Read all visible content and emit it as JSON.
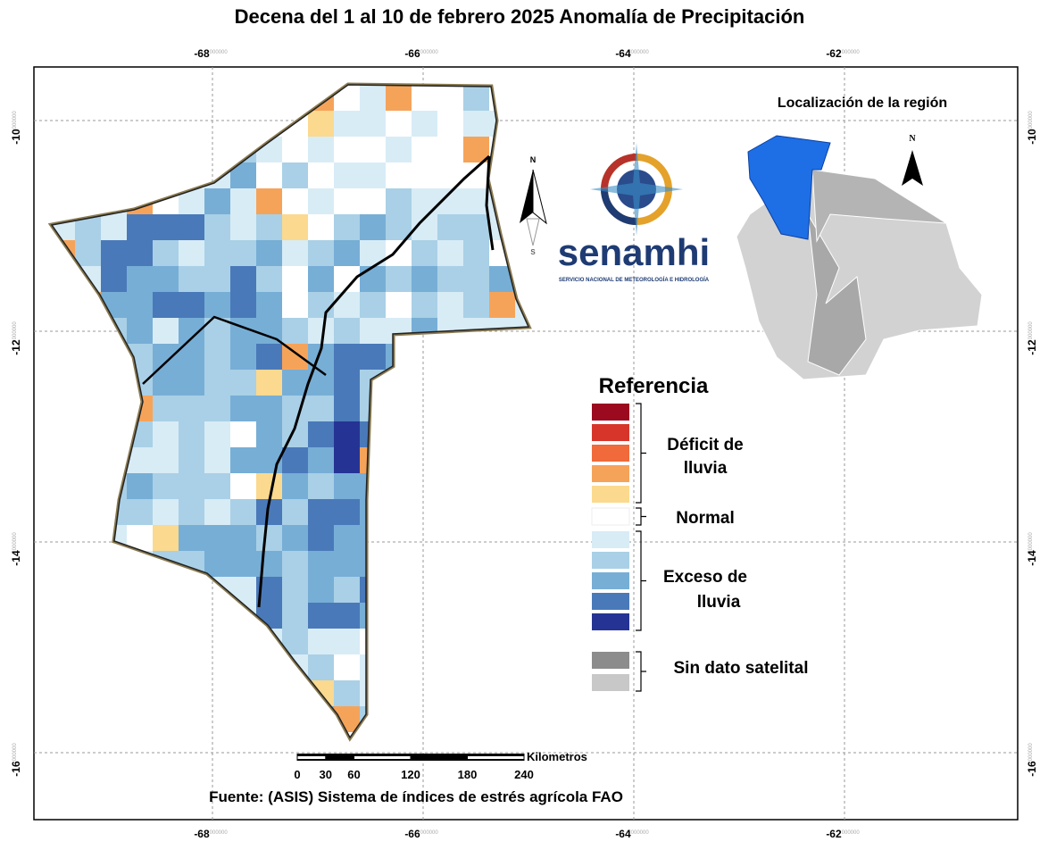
{
  "title": "Decena del 1 al 10 de febrero 2025 Anomalía de Precipitación",
  "map": {
    "lon_ticks": [
      -68,
      -66,
      -64,
      -62
    ],
    "lat_ticks": [
      -10,
      -12,
      -14,
      -16
    ],
    "tick_suffix": "000000"
  },
  "north_arrow": {
    "north": "N",
    "south": "S"
  },
  "logo": {
    "name": "senamhi",
    "subtitle": "SERVICIO NACIONAL DE METEOROLOGÍA E HIDROLOGÍA"
  },
  "inset": {
    "title": "Localización de la región",
    "north": "N"
  },
  "legend": {
    "title": "Referencia",
    "groups": [
      {
        "label": [
          "Déficit de",
          "lluvia"
        ],
        "colors": [
          "#9b0a1f",
          "#d7352a",
          "#f06a3b",
          "#f6a35a",
          "#fbd98e"
        ]
      },
      {
        "label": [
          "Normal"
        ],
        "colors": [
          "#ffffff"
        ]
      },
      {
        "label": [
          "Exceso de",
          "lluvia"
        ],
        "colors": [
          "#d8ecf6",
          "#a9d0e6",
          "#77aed6",
          "#4a79b9",
          "#253494"
        ]
      },
      {
        "label": [
          "Sin dato satelital"
        ],
        "colors": [
          "#8c8c8c",
          "#c8c8c8"
        ]
      }
    ]
  },
  "scale_bar": {
    "unit": "Kilometros",
    "ticks": [
      0,
      30,
      60,
      120,
      180,
      240
    ]
  },
  "source": "Fuente: (ASIS) Sistema de índices de estrés agrícola FAO"
}
